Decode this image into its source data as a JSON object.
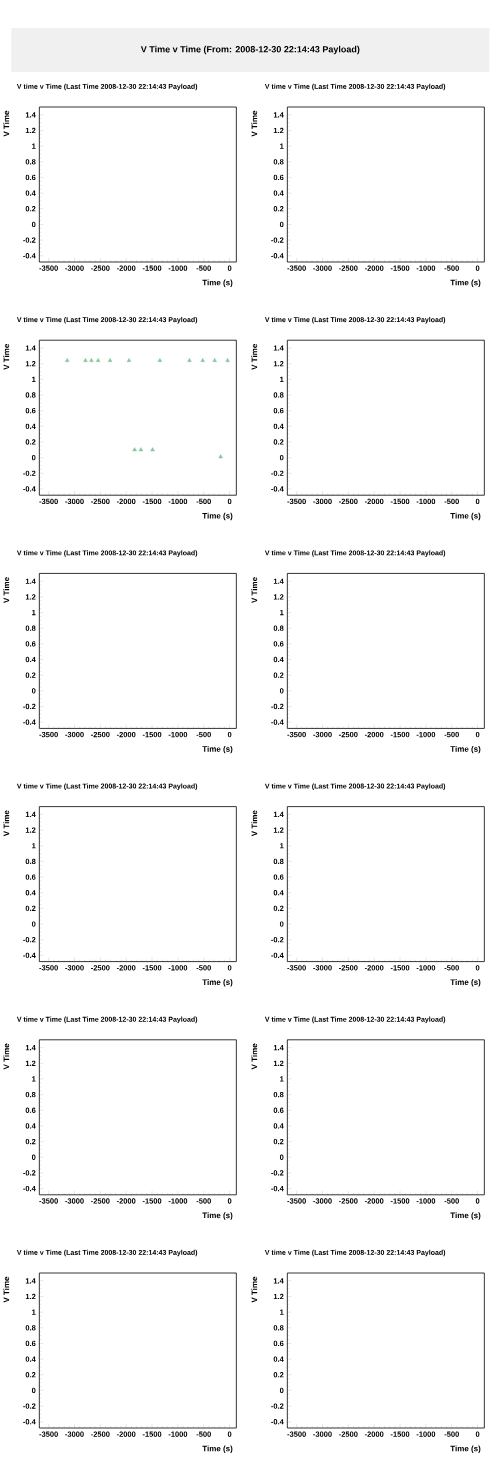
{
  "chart_data": [
    {
      "type": "other",
      "title": "V Time v Time (From: 2008-12-30 22:14:43 Payload)"
    },
    {
      "type": "scatter",
      "title": "V time v Time (Last Time 2008-12-30 22:14:43 Payload)",
      "xlabel": "Time (s)",
      "ylabel": "V Time",
      "xlim": [
        -3680,
        130
      ],
      "ylim": [
        -0.48,
        1.5
      ],
      "xticks": [
        -3500,
        -3000,
        -2500,
        -2000,
        -1500,
        -1000,
        -500,
        0
      ],
      "yticks": [
        -0.4,
        -0.2,
        0,
        0.2,
        0.4,
        0.6,
        0.8,
        1,
        1.2,
        1.4
      ]
    },
    {
      "type": "scatter",
      "title": "V time v Time (Last Time 2008-12-30 22:14:43 Payload)",
      "xlabel": "Time (s)",
      "ylabel": "V Time",
      "xlim": [
        -3680,
        130
      ],
      "ylim": [
        -0.48,
        1.5
      ],
      "xticks": [
        -3500,
        -3000,
        -2500,
        -2000,
        -1500,
        -1000,
        -500,
        0
      ],
      "yticks": [
        -0.4,
        -0.2,
        0,
        0.2,
        0.4,
        0.6,
        0.8,
        1,
        1.2,
        1.4
      ]
    },
    {
      "type": "scatter",
      "title": "V time v Time (Last Time 2008-12-30 22:14:43 Payload)",
      "xlabel": "Time (s)",
      "ylabel": "V Time",
      "marker": "triangle",
      "color": "#80c8a0",
      "x": [
        -3141,
        -2788,
        -2672,
        -2543,
        -2312,
        -1946,
        -1837,
        -1715,
        -1490,
        -1349,
        -777,
        -520,
        -289,
        -173,
        -39
      ],
      "values": [
        1.24,
        1.24,
        1.24,
        1.24,
        1.24,
        1.24,
        0.1,
        0.1,
        0.1,
        1.24,
        1.24,
        1.24,
        1.24,
        0.01,
        1.24
      ],
      "xlim": [
        -3680,
        130
      ],
      "ylim": [
        -0.48,
        1.5
      ],
      "xticks": [
        -3500,
        -3000,
        -2500,
        -2000,
        -1500,
        -1000,
        -500,
        0
      ],
      "yticks": [
        -0.4,
        -0.2,
        0,
        0.2,
        0.4,
        0.6,
        0.8,
        1,
        1.2,
        1.4
      ]
    },
    {
      "type": "scatter",
      "title": "V time v Time (Last Time 2008-12-30 22:14:43 Payload)",
      "xlabel": "Time (s)",
      "ylabel": "V Time",
      "xlim": [
        -3680,
        130
      ],
      "ylim": [
        -0.48,
        1.5
      ],
      "xticks": [
        -3500,
        -3000,
        -2500,
        -2000,
        -1500,
        -1000,
        -500,
        0
      ],
      "yticks": [
        -0.4,
        -0.2,
        0,
        0.2,
        0.4,
        0.6,
        0.8,
        1,
        1.2,
        1.4
      ]
    },
    {
      "type": "scatter",
      "title": "V time v Time (Last Time 2008-12-30 22:14:43 Payload)",
      "xlabel": "Time (s)",
      "ylabel": "V Time",
      "xlim": [
        -3680,
        130
      ],
      "ylim": [
        -0.48,
        1.5
      ],
      "xticks": [
        -3500,
        -3000,
        -2500,
        -2000,
        -1500,
        -1000,
        -500,
        0
      ],
      "yticks": [
        -0.4,
        -0.2,
        0,
        0.2,
        0.4,
        0.6,
        0.8,
        1,
        1.2,
        1.4
      ]
    },
    {
      "type": "scatter",
      "title": "V time v Time (Last Time 2008-12-30 22:14:43 Payload)",
      "xlabel": "Time (s)",
      "ylabel": "V Time",
      "xlim": [
        -3680,
        130
      ],
      "ylim": [
        -0.48,
        1.5
      ],
      "xticks": [
        -3500,
        -3000,
        -2500,
        -2000,
        -1500,
        -1000,
        -500,
        0
      ],
      "yticks": [
        -0.4,
        -0.2,
        0,
        0.2,
        0.4,
        0.6,
        0.8,
        1,
        1.2,
        1.4
      ]
    },
    {
      "type": "scatter",
      "title": "V time v Time (Last Time 2008-12-30 22:14:43 Payload)",
      "xlabel": "Time (s)",
      "ylabel": "V Time",
      "xlim": [
        -3680,
        130
      ],
      "ylim": [
        -0.48,
        1.5
      ],
      "xticks": [
        -3500,
        -3000,
        -2500,
        -2000,
        -1500,
        -1000,
        -500,
        0
      ],
      "yticks": [
        -0.4,
        -0.2,
        0,
        0.2,
        0.4,
        0.6,
        0.8,
        1,
        1.2,
        1.4
      ]
    },
    {
      "type": "scatter",
      "title": "V time v Time (Last Time 2008-12-30 22:14:43 Payload)",
      "xlabel": "Time (s)",
      "ylabel": "V Time",
      "xlim": [
        -3680,
        130
      ],
      "ylim": [
        -0.48,
        1.5
      ],
      "xticks": [
        -3500,
        -3000,
        -2500,
        -2000,
        -1500,
        -1000,
        -500,
        0
      ],
      "yticks": [
        -0.4,
        -0.2,
        0,
        0.2,
        0.4,
        0.6,
        0.8,
        1,
        1.2,
        1.4
      ]
    },
    {
      "type": "scatter",
      "title": "V time v Time (Last Time 2008-12-30 22:14:43 Payload)",
      "xlabel": "Time (s)",
      "ylabel": "V Time",
      "xlim": [
        -3680,
        130
      ],
      "ylim": [
        -0.48,
        1.5
      ],
      "xticks": [
        -3500,
        -3000,
        -2500,
        -2000,
        -1500,
        -1000,
        -500,
        0
      ],
      "yticks": [
        -0.4,
        -0.2,
        0,
        0.2,
        0.4,
        0.6,
        0.8,
        1,
        1.2,
        1.4
      ]
    },
    {
      "type": "scatter",
      "title": "V time v Time (Last Time 2008-12-30 22:14:43 Payload)",
      "xlabel": "Time (s)",
      "ylabel": "V Time",
      "xlim": [
        -3680,
        130
      ],
      "ylim": [
        -0.48,
        1.5
      ],
      "xticks": [
        -3500,
        -3000,
        -2500,
        -2000,
        -1500,
        -1000,
        -500,
        0
      ],
      "yticks": [
        -0.4,
        -0.2,
        0,
        0.2,
        0.4,
        0.6,
        0.8,
        1,
        1.2,
        1.4
      ]
    },
    {
      "type": "scatter",
      "title": "V time v Time (Last Time 2008-12-30 22:14:43 Payload)",
      "xlabel": "Time (s)",
      "ylabel": "V Time",
      "xlim": [
        -3680,
        130
      ],
      "ylim": [
        -0.48,
        1.5
      ],
      "xticks": [
        -3500,
        -3000,
        -2500,
        -2000,
        -1500,
        -1000,
        -500,
        0
      ],
      "yticks": [
        -0.4,
        -0.2,
        0,
        0.2,
        0.4,
        0.6,
        0.8,
        1,
        1.2,
        1.4
      ]
    },
    {
      "type": "scatter",
      "title": "V time v Time (Last Time 2008-12-30 22:14:43 Payload)",
      "xlabel": "Time (s)",
      "ylabel": "V Time",
      "xlim": [
        -3680,
        130
      ],
      "ylim": [
        -0.48,
        1.5
      ],
      "xticks": [
        -3500,
        -3000,
        -2500,
        -2000,
        -1500,
        -1000,
        -500,
        0
      ],
      "yticks": [
        -0.4,
        -0.2,
        0,
        0.2,
        0.4,
        0.6,
        0.8,
        1,
        1.2,
        1.4
      ]
    }
  ]
}
